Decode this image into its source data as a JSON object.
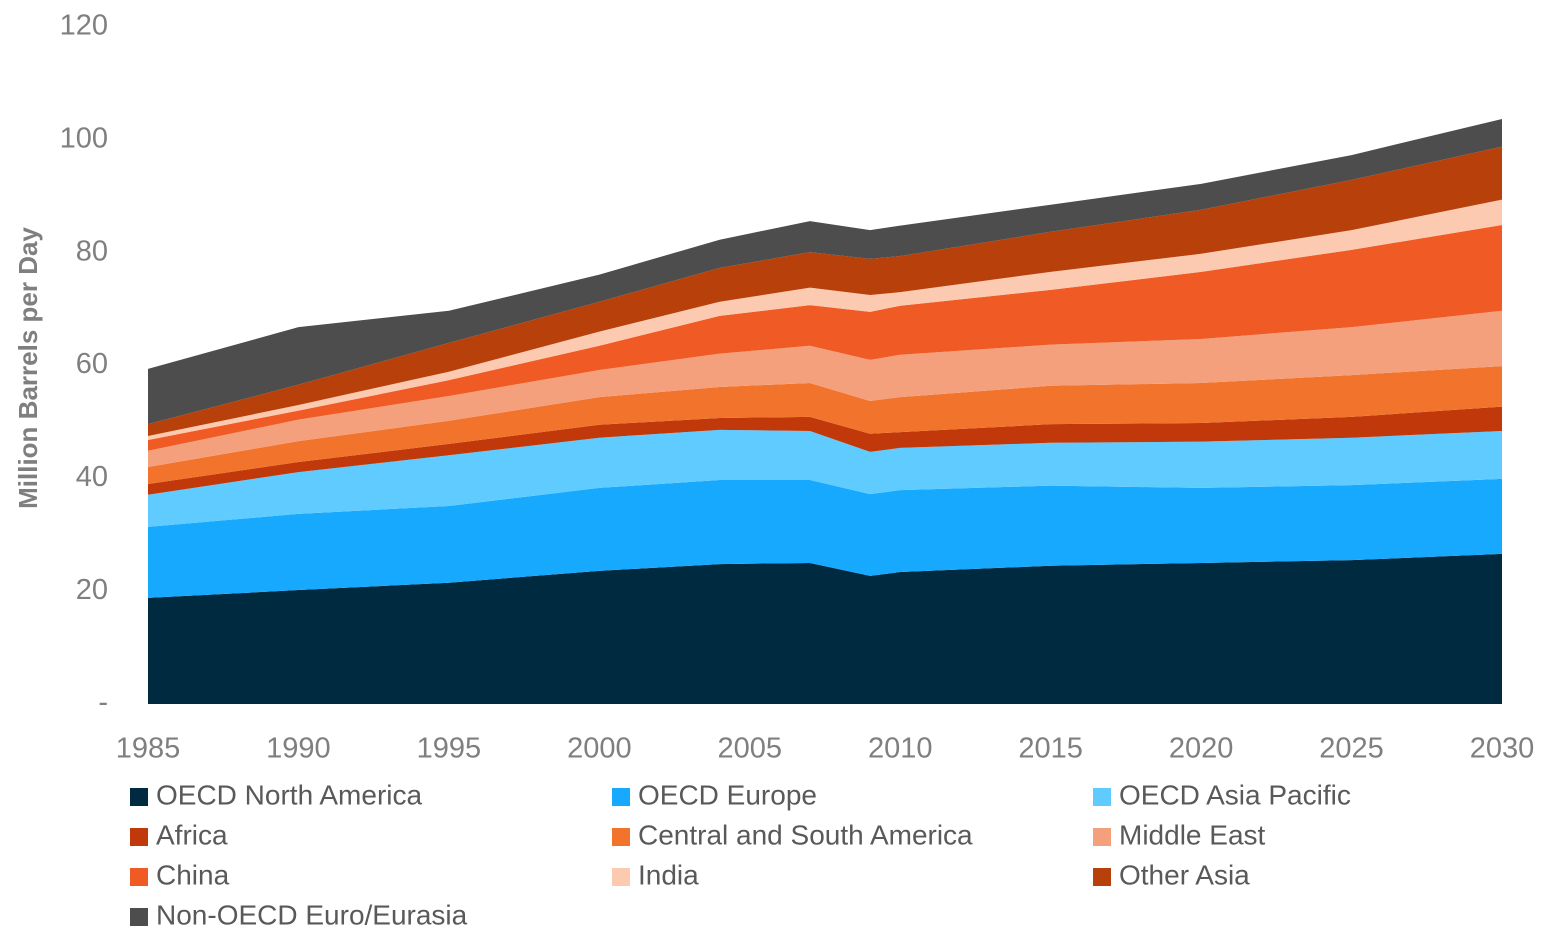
{
  "chart_data": {
    "type": "stacked_area",
    "y_label": "Million Barrels per Day",
    "x": [
      1985,
      1990,
      1995,
      2000,
      2004,
      2007,
      2009,
      2010,
      2015,
      2020,
      2025,
      2030
    ],
    "xlim": [
      1985,
      2030
    ],
    "xticks": [
      1985,
      1990,
      1995,
      2000,
      2005,
      2010,
      2015,
      2020,
      2025,
      2030
    ],
    "ylim": [
      0,
      120
    ],
    "yticks": [
      {
        "value": 0,
        "label": "-"
      },
      20,
      40,
      60,
      80,
      100,
      120
    ],
    "grid": false,
    "legend": "bottom",
    "series": [
      {
        "name": "OECD North America",
        "color": "#002a40",
        "values": [
          18.8,
          20.2,
          21.5,
          23.6,
          24.8,
          25.0,
          22.7,
          23.4,
          24.5,
          25.0,
          25.5,
          26.6
        ]
      },
      {
        "name": "OECD Europe",
        "color": "#17a9fe",
        "values": [
          12.6,
          13.5,
          13.6,
          14.7,
          14.9,
          14.7,
          14.5,
          14.5,
          14.2,
          13.3,
          13.3,
          13.3
        ]
      },
      {
        "name": "OECD Asia Pacific",
        "color": "#5fcbff",
        "values": [
          5.7,
          7.4,
          9.0,
          8.9,
          8.9,
          8.7,
          7.5,
          7.5,
          7.6,
          8.2,
          8.4,
          8.5
        ]
      },
      {
        "name": "Africa",
        "color": "#c1390b",
        "values": [
          1.9,
          1.8,
          2.0,
          2.3,
          2.1,
          2.5,
          3.2,
          2.8,
          3.3,
          3.3,
          3.7,
          4.3
        ]
      },
      {
        "name": "Central and South America",
        "color": "#f2732b",
        "values": [
          3.0,
          3.7,
          4.1,
          4.9,
          5.5,
          6.0,
          5.8,
          6.2,
          6.8,
          7.1,
          7.4,
          7.2
        ]
      },
      {
        "name": "Middle East",
        "color": "#f4a07c",
        "values": [
          2.9,
          3.8,
          4.4,
          4.8,
          5.9,
          6.6,
          7.3,
          7.5,
          7.3,
          7.8,
          8.5,
          9.8
        ]
      },
      {
        "name": "China",
        "color": "#f05a24",
        "values": [
          1.9,
          1.6,
          2.8,
          4.3,
          6.7,
          7.2,
          8.5,
          8.7,
          9.7,
          11.9,
          13.7,
          15.2
        ]
      },
      {
        "name": "India",
        "color": "#fccab0",
        "values": [
          0.7,
          1.0,
          1.5,
          2.5,
          2.5,
          3.1,
          3.0,
          2.4,
          3.2,
          3.2,
          3.5,
          4.5
        ]
      },
      {
        "name": "Other Asia",
        "color": "#b8400b",
        "values": [
          2.1,
          3.6,
          5.1,
          5.3,
          6.0,
          6.3,
          6.4,
          6.4,
          7.1,
          7.8,
          8.9,
          9.4
        ]
      },
      {
        "name": "Non-OECD Euro/Eurasia",
        "color": "#4d4d4d",
        "values": [
          9.8,
          10.2,
          5.7,
          4.8,
          5.0,
          5.5,
          5.1,
          5.4,
          4.8,
          4.6,
          4.4,
          4.9
        ]
      }
    ]
  }
}
